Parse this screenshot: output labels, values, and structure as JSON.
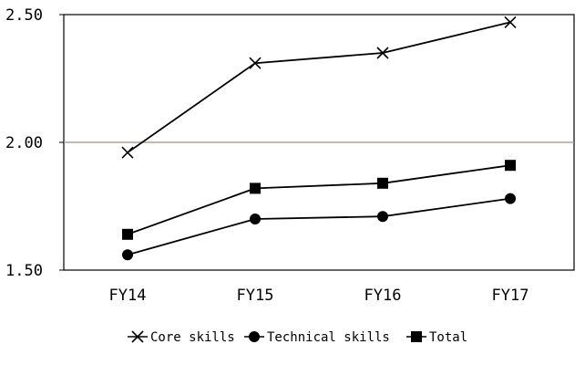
{
  "chart_data": {
    "type": "line",
    "categories": [
      "FY14",
      "FY15",
      "FY16",
      "FY17"
    ],
    "series": [
      {
        "name": "Core skills",
        "values": [
          1.96,
          2.31,
          2.35,
          2.47
        ],
        "marker": "x"
      },
      {
        "name": "Technical skills",
        "values": [
          1.56,
          1.7,
          1.71,
          1.78
        ],
        "marker": "circle"
      },
      {
        "name": "Total",
        "values": [
          1.64,
          1.82,
          1.84,
          1.91
        ],
        "marker": "square"
      }
    ],
    "ylim": [
      1.5,
      2.5
    ],
    "yticks": [
      1.5,
      2.0,
      2.5
    ],
    "ytick_labels": [
      "1.50",
      "2.00",
      "2.50"
    ],
    "gridlines": [
      2.0
    ],
    "legend_position": "bottom",
    "colors": {
      "line": "#000000",
      "grid": "#9a8f86",
      "axis": "#000000"
    }
  }
}
